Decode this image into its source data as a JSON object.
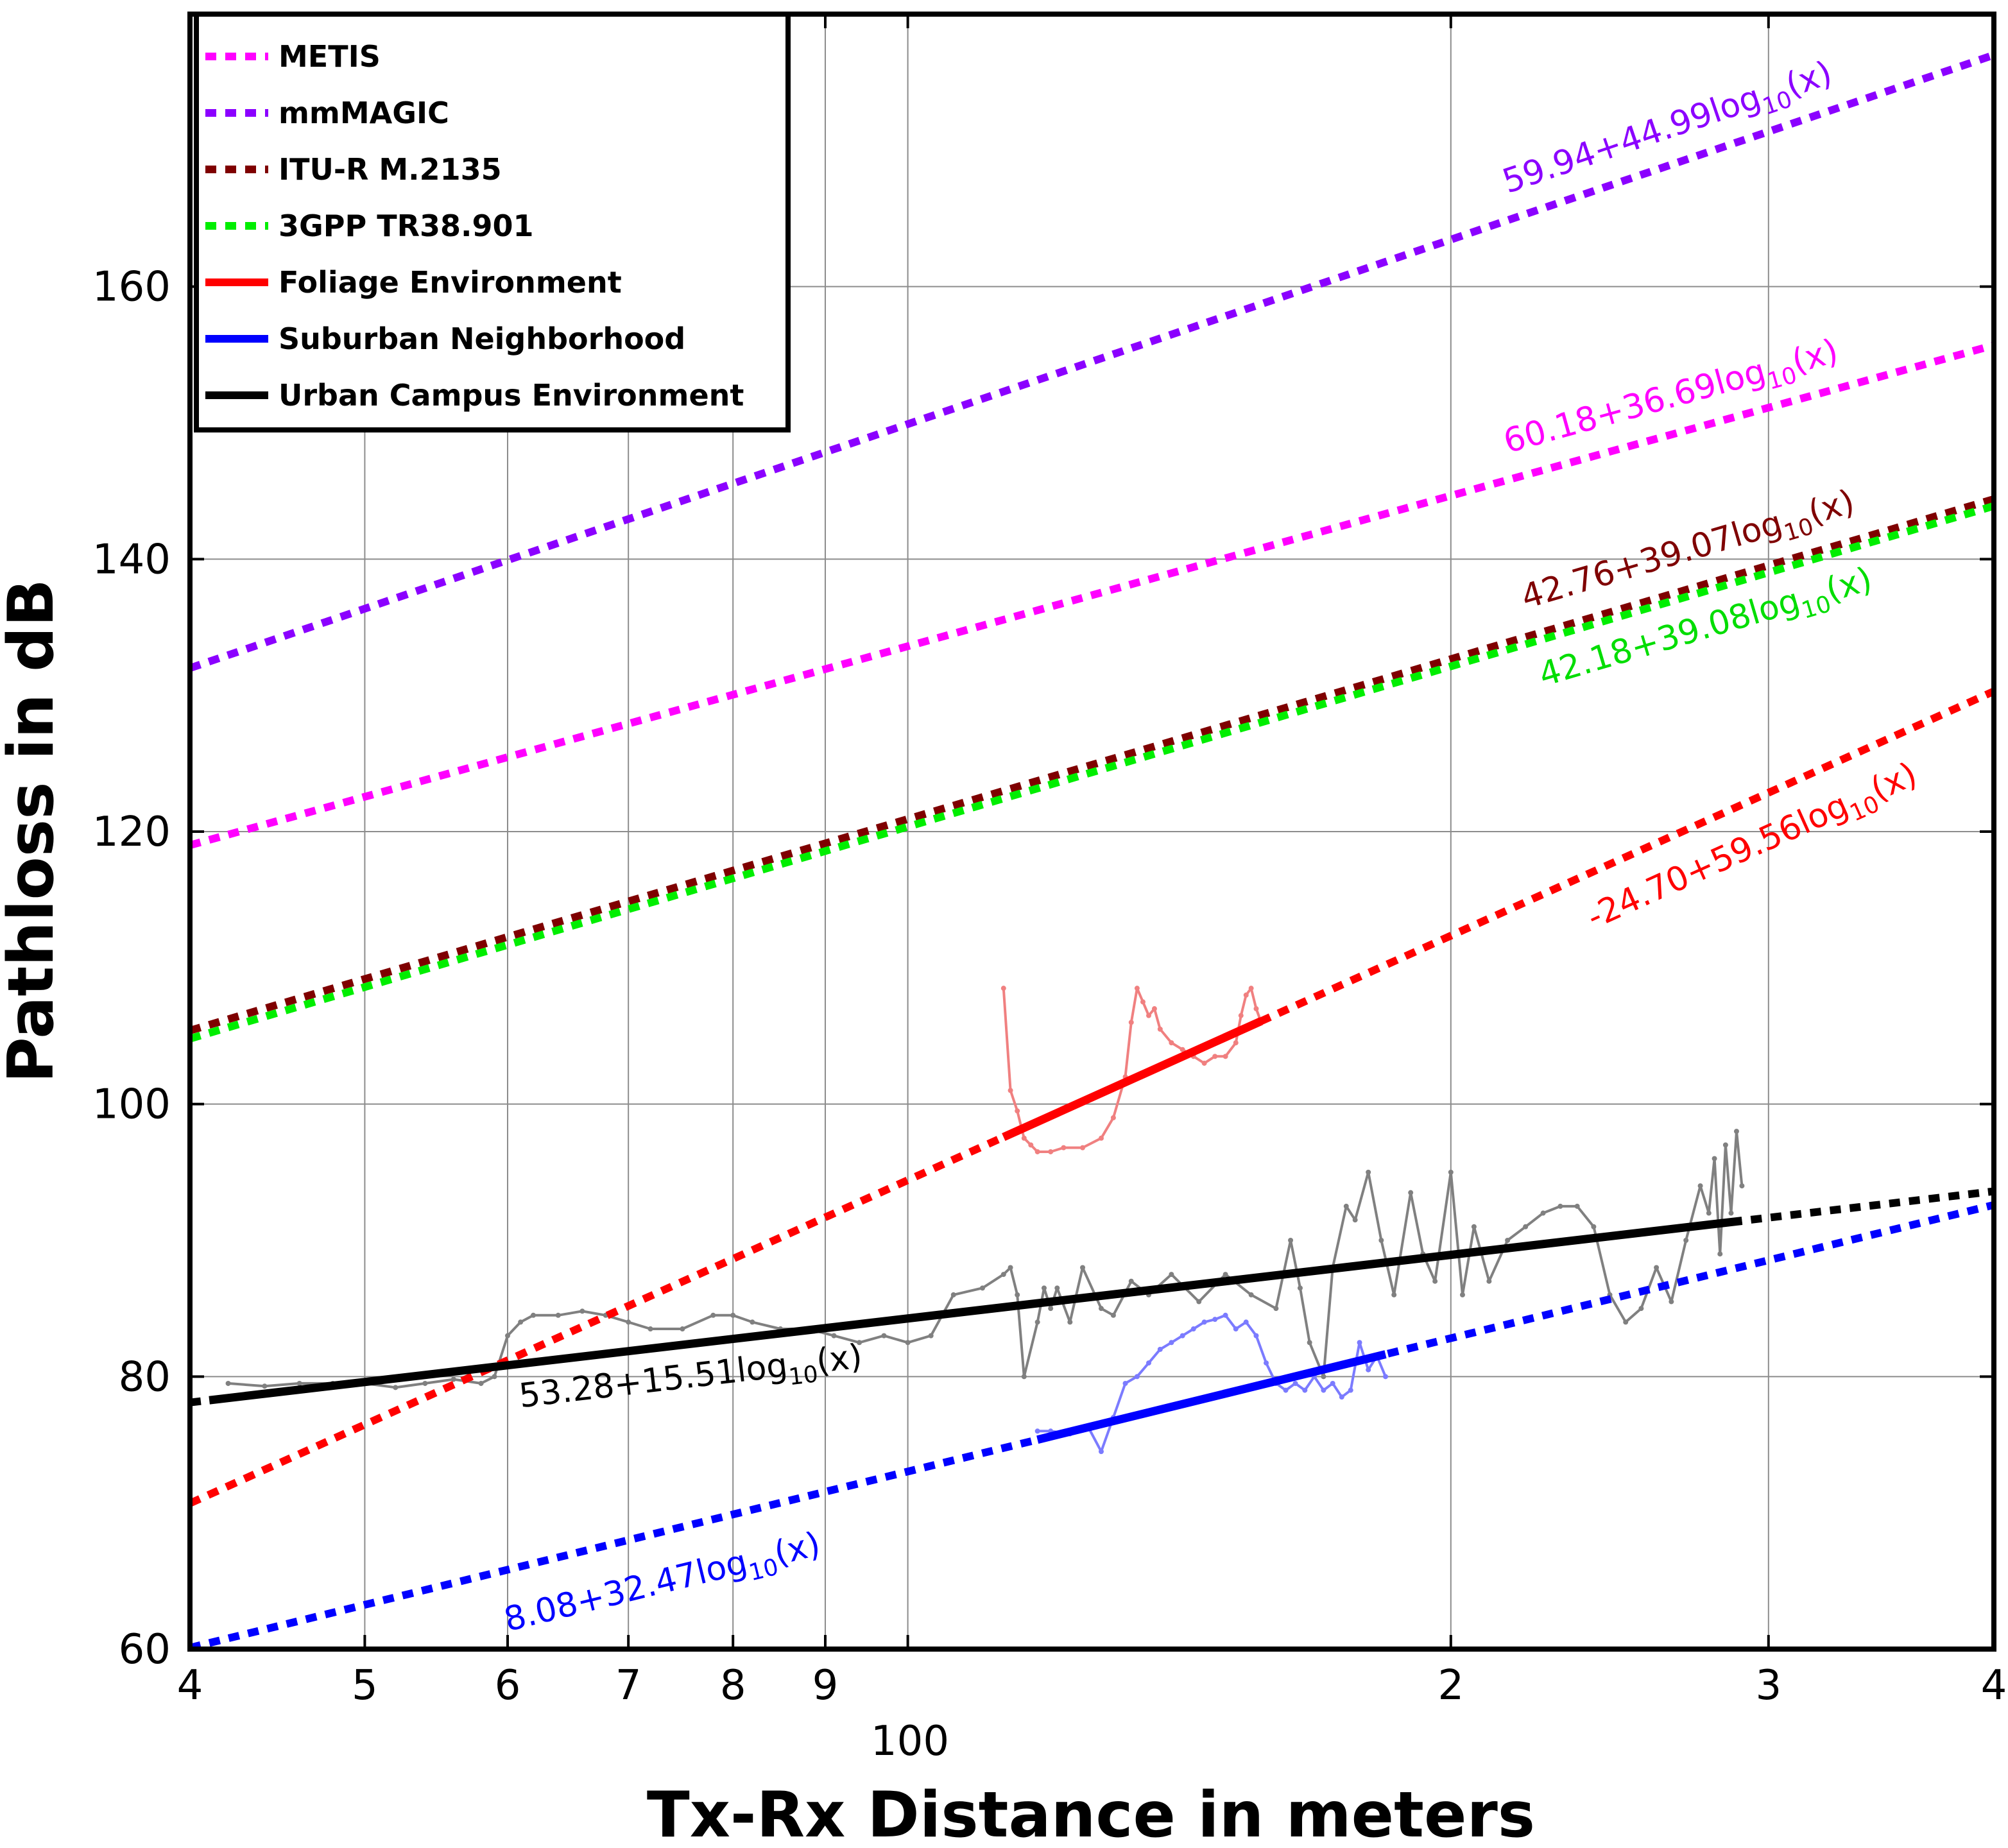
{
  "chart_data": {
    "type": "line",
    "xlabel": "Tx-Rx Distance in meters",
    "ylabel": "Pathloss in dB",
    "x_scale": "log",
    "xlim": [
      40,
      400
    ],
    "ylim": [
      60,
      180
    ],
    "grid": true,
    "x_ticks": [
      {
        "value": 40,
        "label": "4"
      },
      {
        "value": 50,
        "label": "5"
      },
      {
        "value": 60,
        "label": "6"
      },
      {
        "value": 70,
        "label": "7"
      },
      {
        "value": 80,
        "label": "8"
      },
      {
        "value": 90,
        "label": "9"
      },
      {
        "value": 100,
        "label": ""
      },
      {
        "value": 200,
        "label": "2"
      },
      {
        "value": 300,
        "label": "3"
      },
      {
        "value": 400,
        "label": "4"
      }
    ],
    "x_decade_label": {
      "value": 100,
      "label": "100"
    },
    "y_ticks": [
      60,
      80,
      100,
      120,
      140,
      160
    ],
    "legend": {
      "position": "top-left",
      "entries": [
        {
          "label": "METIS",
          "color": "#FF00FF",
          "style": "dotted"
        },
        {
          "label": "mmMAGIC",
          "color": "#8B00FF",
          "style": "dotted"
        },
        {
          "label": "ITU-R M.2135",
          "color": "#7F0000",
          "style": "dotted"
        },
        {
          "label": "3GPP TR38.901",
          "color": "#00EE00",
          "style": "dotted"
        },
        {
          "label": "Foliage Environment",
          "color": "#FF0000",
          "style": "solid"
        },
        {
          "label": "Suburban Neighborhood",
          "color": "#0000FF",
          "style": "solid"
        },
        {
          "label": "Urban Campus Environment",
          "color": "#000000",
          "style": "solid"
        }
      ]
    },
    "series": [
      {
        "name": "METIS",
        "color": "#FF00FF",
        "style": "dotted",
        "x": [
          40,
          400
        ],
        "y": [
          119.0,
          155.7
        ],
        "annotation": {
          "pre": "60.18+36.69log",
          "sub": "10",
          "post": "(x)"
        }
      },
      {
        "name": "mmMAGIC",
        "color": "#8B00FF",
        "style": "dotted",
        "x": [
          40,
          400
        ],
        "y": [
          132.0,
          177.0
        ],
        "annotation": {
          "pre": "59.94+44.99log",
          "sub": "10",
          "post": "(x)"
        }
      },
      {
        "name": "ITU-R M.2135",
        "color": "#7F0000",
        "style": "dotted",
        "x": [
          40,
          400
        ],
        "y": [
          105.4,
          144.4
        ],
        "annotation": {
          "pre": "42.76+39.07log",
          "sub": "10",
          "post": "(x)"
        }
      },
      {
        "name": "3GPP TR38.901",
        "color": "#00EE00",
        "style": "dotted",
        "x": [
          40,
          400
        ],
        "y": [
          104.8,
          143.9
        ],
        "annotation": {
          "pre": "42.18+39.08log",
          "sub": "10",
          "post": "(x)"
        }
      },
      {
        "name": "Foliage Environment",
        "color": "#FF0000",
        "style": "solid",
        "fit_x": [
          40,
          400
        ],
        "fit_y": [
          70.7,
          130.3
        ],
        "solid_range": [
          113,
          157
        ],
        "annotation": {
          "pre": "-24.70+59.56log",
          "sub": "10",
          "post": "(x)"
        },
        "measured": {
          "color": "#F08080",
          "x": [
            113,
            114,
            115,
            116,
            117,
            118,
            120,
            122,
            125,
            128,
            130,
            132,
            133,
            134,
            135,
            136,
            137,
            138,
            140,
            142,
            144,
            146,
            148,
            150,
            152,
            153,
            154,
            155,
            156,
            157
          ],
          "y": [
            108.5,
            101,
            99.5,
            97.5,
            97,
            96.5,
            96.5,
            96.8,
            96.8,
            97.5,
            99,
            102,
            106,
            108.5,
            107.5,
            106.5,
            107,
            105.5,
            104.5,
            104,
            103.5,
            103,
            103.5,
            103.5,
            104.5,
            106.5,
            108,
            108.5,
            107,
            106
          ]
        }
      },
      {
        "name": "Suburban Neighborhood",
        "color": "#0000FF",
        "style": "solid",
        "fit_x": [
          40,
          400
        ],
        "fit_y": [
          60.1,
          92.6
        ],
        "solid_range": [
          118,
          184
        ],
        "annotation": {
          "pre": "8.08+32.47log",
          "sub": "10",
          "post": "(x)"
        },
        "measured": {
          "color": "#7B7BFF",
          "x": [
            118,
            120,
            123,
            126,
            128,
            130,
            132,
            134,
            136,
            138,
            140,
            142,
            144,
            146,
            148,
            150,
            152,
            154,
            156,
            158,
            160,
            162,
            164,
            166,
            168,
            170,
            172,
            174,
            176,
            178,
            180,
            182,
            184
          ],
          "y": [
            76,
            76,
            75.8,
            76.2,
            74.5,
            77,
            79.5,
            80,
            81,
            82,
            82.5,
            83,
            83.5,
            84,
            84.2,
            84.5,
            83.5,
            84,
            83,
            81,
            79.5,
            79,
            79.5,
            79,
            80,
            79,
            79.5,
            78.5,
            79,
            82.5,
            80.5,
            81.5,
            80
          ]
        }
      },
      {
        "name": "Urban Campus Environment",
        "color": "#000000",
        "style": "solid",
        "fit_x": [
          40,
          400
        ],
        "fit_y": [
          78.1,
          93.6
        ],
        "solid_range": [
          41,
          290
        ],
        "annotation": {
          "pre": "53.28+15.51log",
          "sub": "10",
          "post": "(x)"
        },
        "measured": {
          "color": "#808080",
          "x": [
            42,
            44,
            46,
            48,
            50,
            52,
            54,
            56,
            58,
            59,
            60,
            61,
            62,
            64,
            66,
            68,
            70,
            72,
            75,
            78,
            80,
            82,
            85,
            88,
            91,
            94,
            97,
            100,
            103,
            106,
            110,
            113,
            114,
            115,
            116,
            118,
            119,
            120,
            121,
            123,
            125,
            128,
            130,
            133,
            136,
            140,
            145,
            150,
            155,
            160,
            163,
            165,
            167,
            170,
            172,
            175,
            177,
            180,
            183,
            186,
            190,
            193,
            196,
            200,
            203,
            206,
            210,
            215,
            220,
            225,
            230,
            235,
            240,
            245,
            250,
            255,
            260,
            265,
            270,
            275,
            278,
            280,
            282,
            284,
            286,
            288,
            290
          ],
          "y": [
            79.5,
            79.3,
            79.5,
            79.5,
            79.5,
            79.2,
            79.5,
            79.8,
            79.5,
            80,
            83,
            84,
            84.5,
            84.5,
            84.8,
            84.5,
            84,
            83.5,
            83.5,
            84.5,
            84.5,
            84,
            83.5,
            83.5,
            83,
            82.5,
            83,
            82.5,
            83,
            86,
            86.5,
            87.5,
            88,
            86,
            80,
            84,
            86.5,
            85,
            86.5,
            84,
            88,
            85,
            84.5,
            87,
            86,
            87.5,
            85.5,
            87.5,
            86,
            85,
            90,
            86.5,
            82.5,
            80,
            88,
            92.5,
            91.5,
            95,
            90,
            86,
            93.5,
            89,
            87,
            95,
            86,
            91,
            87,
            90,
            91,
            92,
            92.5,
            92.5,
            91,
            86,
            84,
            85,
            88,
            85.5,
            90,
            94,
            92,
            96,
            89,
            97,
            92,
            98,
            94
          ]
        }
      }
    ]
  }
}
